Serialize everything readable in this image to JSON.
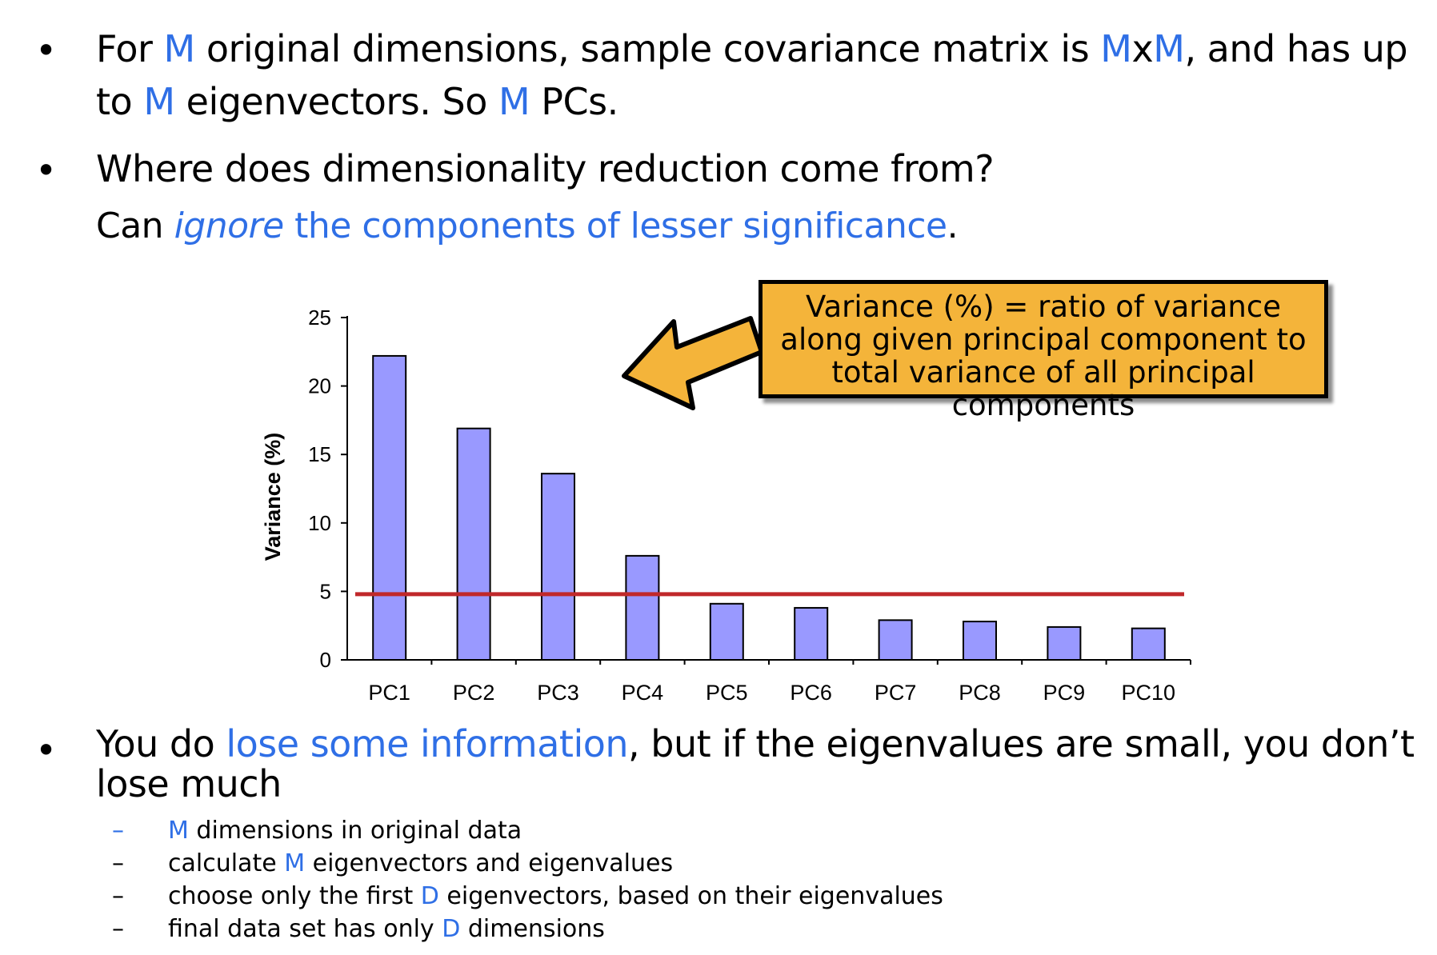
{
  "bullets": {
    "b1": {
      "p1": "For ",
      "m1": "M",
      "p2": " original dimensions, sample covariance matrix is ",
      "m2": "M",
      "p3": "x",
      "m3": "M",
      "p4": ", and has up to ",
      "m4": "M",
      "p5": " eigenvectors. So ",
      "m5": "M",
      "p6": " PCs."
    },
    "b2": {
      "text": "Where does dimensionality reduction come from?"
    },
    "b2sub": {
      "p1": "Can ",
      "em": "ignore",
      "hl": " the components of lesser significance",
      "p2": "."
    },
    "b3": {
      "p1": "You do ",
      "hl": "lose some information",
      "p2": ", but if the eigenvalues are small, you don’t lose much"
    },
    "dot": "•",
    "subitems": [
      {
        "dash": "–",
        "pre": "",
        "var": "M",
        "post": " dimensions in original data"
      },
      {
        "dash": "–",
        "pre": "calculate ",
        "var": "M",
        "post": " eigenvectors and eigenvalues"
      },
      {
        "dash": "–",
        "pre": "choose only the first ",
        "var": "D",
        "post": " eigenvectors, based on their eigenvalues"
      },
      {
        "dash": "–",
        "pre": "final data set has only ",
        "var": "D",
        "post": " dimensions"
      }
    ]
  },
  "callout": {
    "text": "Variance (%) = ratio of variance along given principal component to total variance of all principal components"
  },
  "colors": {
    "accent": "#2f6fe6",
    "bar": "#9999ff",
    "threshold": "#c0282a",
    "callout_bg": "#f4b43a"
  },
  "chart_data": {
    "type": "bar",
    "categories": [
      "PC1",
      "PC2",
      "PC3",
      "PC4",
      "PC5",
      "PC6",
      "PC7",
      "PC8",
      "PC9",
      "PC10"
    ],
    "values": [
      22.2,
      16.9,
      13.6,
      7.6,
      4.1,
      3.8,
      2.9,
      2.8,
      2.4,
      2.3
    ],
    "ylabel": "Variance (%)",
    "xlabel": "",
    "ylim": [
      0,
      25
    ],
    "yticks": [
      0,
      5,
      10,
      15,
      20,
      25
    ],
    "threshold": 4.8,
    "grid": false
  }
}
